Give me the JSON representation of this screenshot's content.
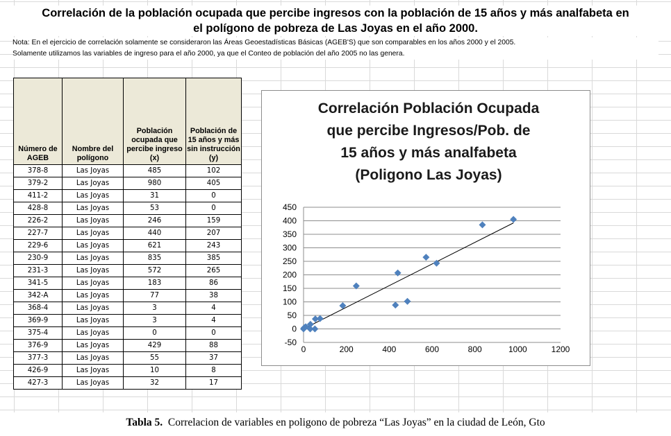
{
  "title": {
    "line1": "Correlación de la población ocupada que percibe ingresos con la población de 15 años y más analfabeta en",
    "line2": "el polígono de pobreza de Las Joyas en el año 2000."
  },
  "note": {
    "line1": "Nota: En el ejercicio de correlación solamente se consideraron las Áreas Geoestadísticas Básicas (AGEB'S) que son comparables en los años 2000 y el 2005.",
    "line2": "Solamente utilizamos las variables de ingreso para el año 2000, ya que el Conteo de población del año 2005 no las genera."
  },
  "table": {
    "headers": [
      "Número de AGEB",
      "Nombre del polígono",
      "Población ocupada que percibe ingreso (x)",
      "Población de 15 años y más sin instrucción (y)"
    ],
    "rows": [
      [
        "378-8",
        "Las Joyas",
        "485",
        "102"
      ],
      [
        "379-2",
        "Las Joyas",
        "980",
        "405"
      ],
      [
        "411-2",
        "Las Joyas",
        "31",
        "0"
      ],
      [
        "428-8",
        "Las Joyas",
        "53",
        "0"
      ],
      [
        "226-2",
        "Las Joyas",
        "246",
        "159"
      ],
      [
        "227-7",
        "Las Joyas",
        "440",
        "207"
      ],
      [
        "229-6",
        "Las Joyas",
        "621",
        "243"
      ],
      [
        "230-9",
        "Las Joyas",
        "835",
        "385"
      ],
      [
        "231-3",
        "Las Joyas",
        "572",
        "265"
      ],
      [
        "341-5",
        "Las Joyas",
        "183",
        "86"
      ],
      [
        "342-A",
        "Las Joyas",
        "77",
        "38"
      ],
      [
        "368-4",
        "Las Joyas",
        "3",
        "4"
      ],
      [
        "369-9",
        "Las Joyas",
        "3",
        "4"
      ],
      [
        "375-4",
        "Las Joyas",
        "0",
        "0"
      ],
      [
        "376-9",
        "Las Joyas",
        "429",
        "88"
      ],
      [
        "377-3",
        "Las Joyas",
        "55",
        "37"
      ],
      [
        "426-9",
        "Las Joyas",
        "10",
        "8"
      ],
      [
        "427-3",
        "Las Joyas",
        "32",
        "17"
      ]
    ]
  },
  "chart_data": {
    "type": "scatter",
    "title": "Correlación Población Ocupada que percibe Ingresos/Pob. de 15 años y más analfabeta (Poligono Las Joyas)",
    "title_lines": [
      "Correlación Población Ocupada",
      "que percibe Ingresos/Pob. de",
      "15 años y más analfabeta",
      "(Poligono Las Joyas)"
    ],
    "x": [
      485,
      980,
      31,
      53,
      246,
      440,
      621,
      835,
      572,
      183,
      77,
      3,
      3,
      0,
      429,
      55,
      10,
      32
    ],
    "y": [
      102,
      405,
      0,
      0,
      159,
      207,
      243,
      385,
      265,
      86,
      38,
      4,
      4,
      0,
      88,
      37,
      8,
      17
    ],
    "xlim": [
      0,
      1200
    ],
    "ylim": [
      -50,
      450
    ],
    "xticks": [
      "0",
      "200",
      "400",
      "600",
      "800",
      "1000",
      "1200"
    ],
    "yticks": [
      "-50",
      "0",
      "50",
      "100",
      "150",
      "200",
      "250",
      "300",
      "350",
      "400",
      "450"
    ],
    "trendline": {
      "x0": 0,
      "y0": 0,
      "x1": 980,
      "y1": 392
    },
    "marker_color": "#4f81bd",
    "line_color": "#000000"
  },
  "caption": {
    "label": "Tabla 5.",
    "text": "Correlacion de variables en poligono de pobreza “Las Joyas” en la ciudad de León, Gto"
  }
}
